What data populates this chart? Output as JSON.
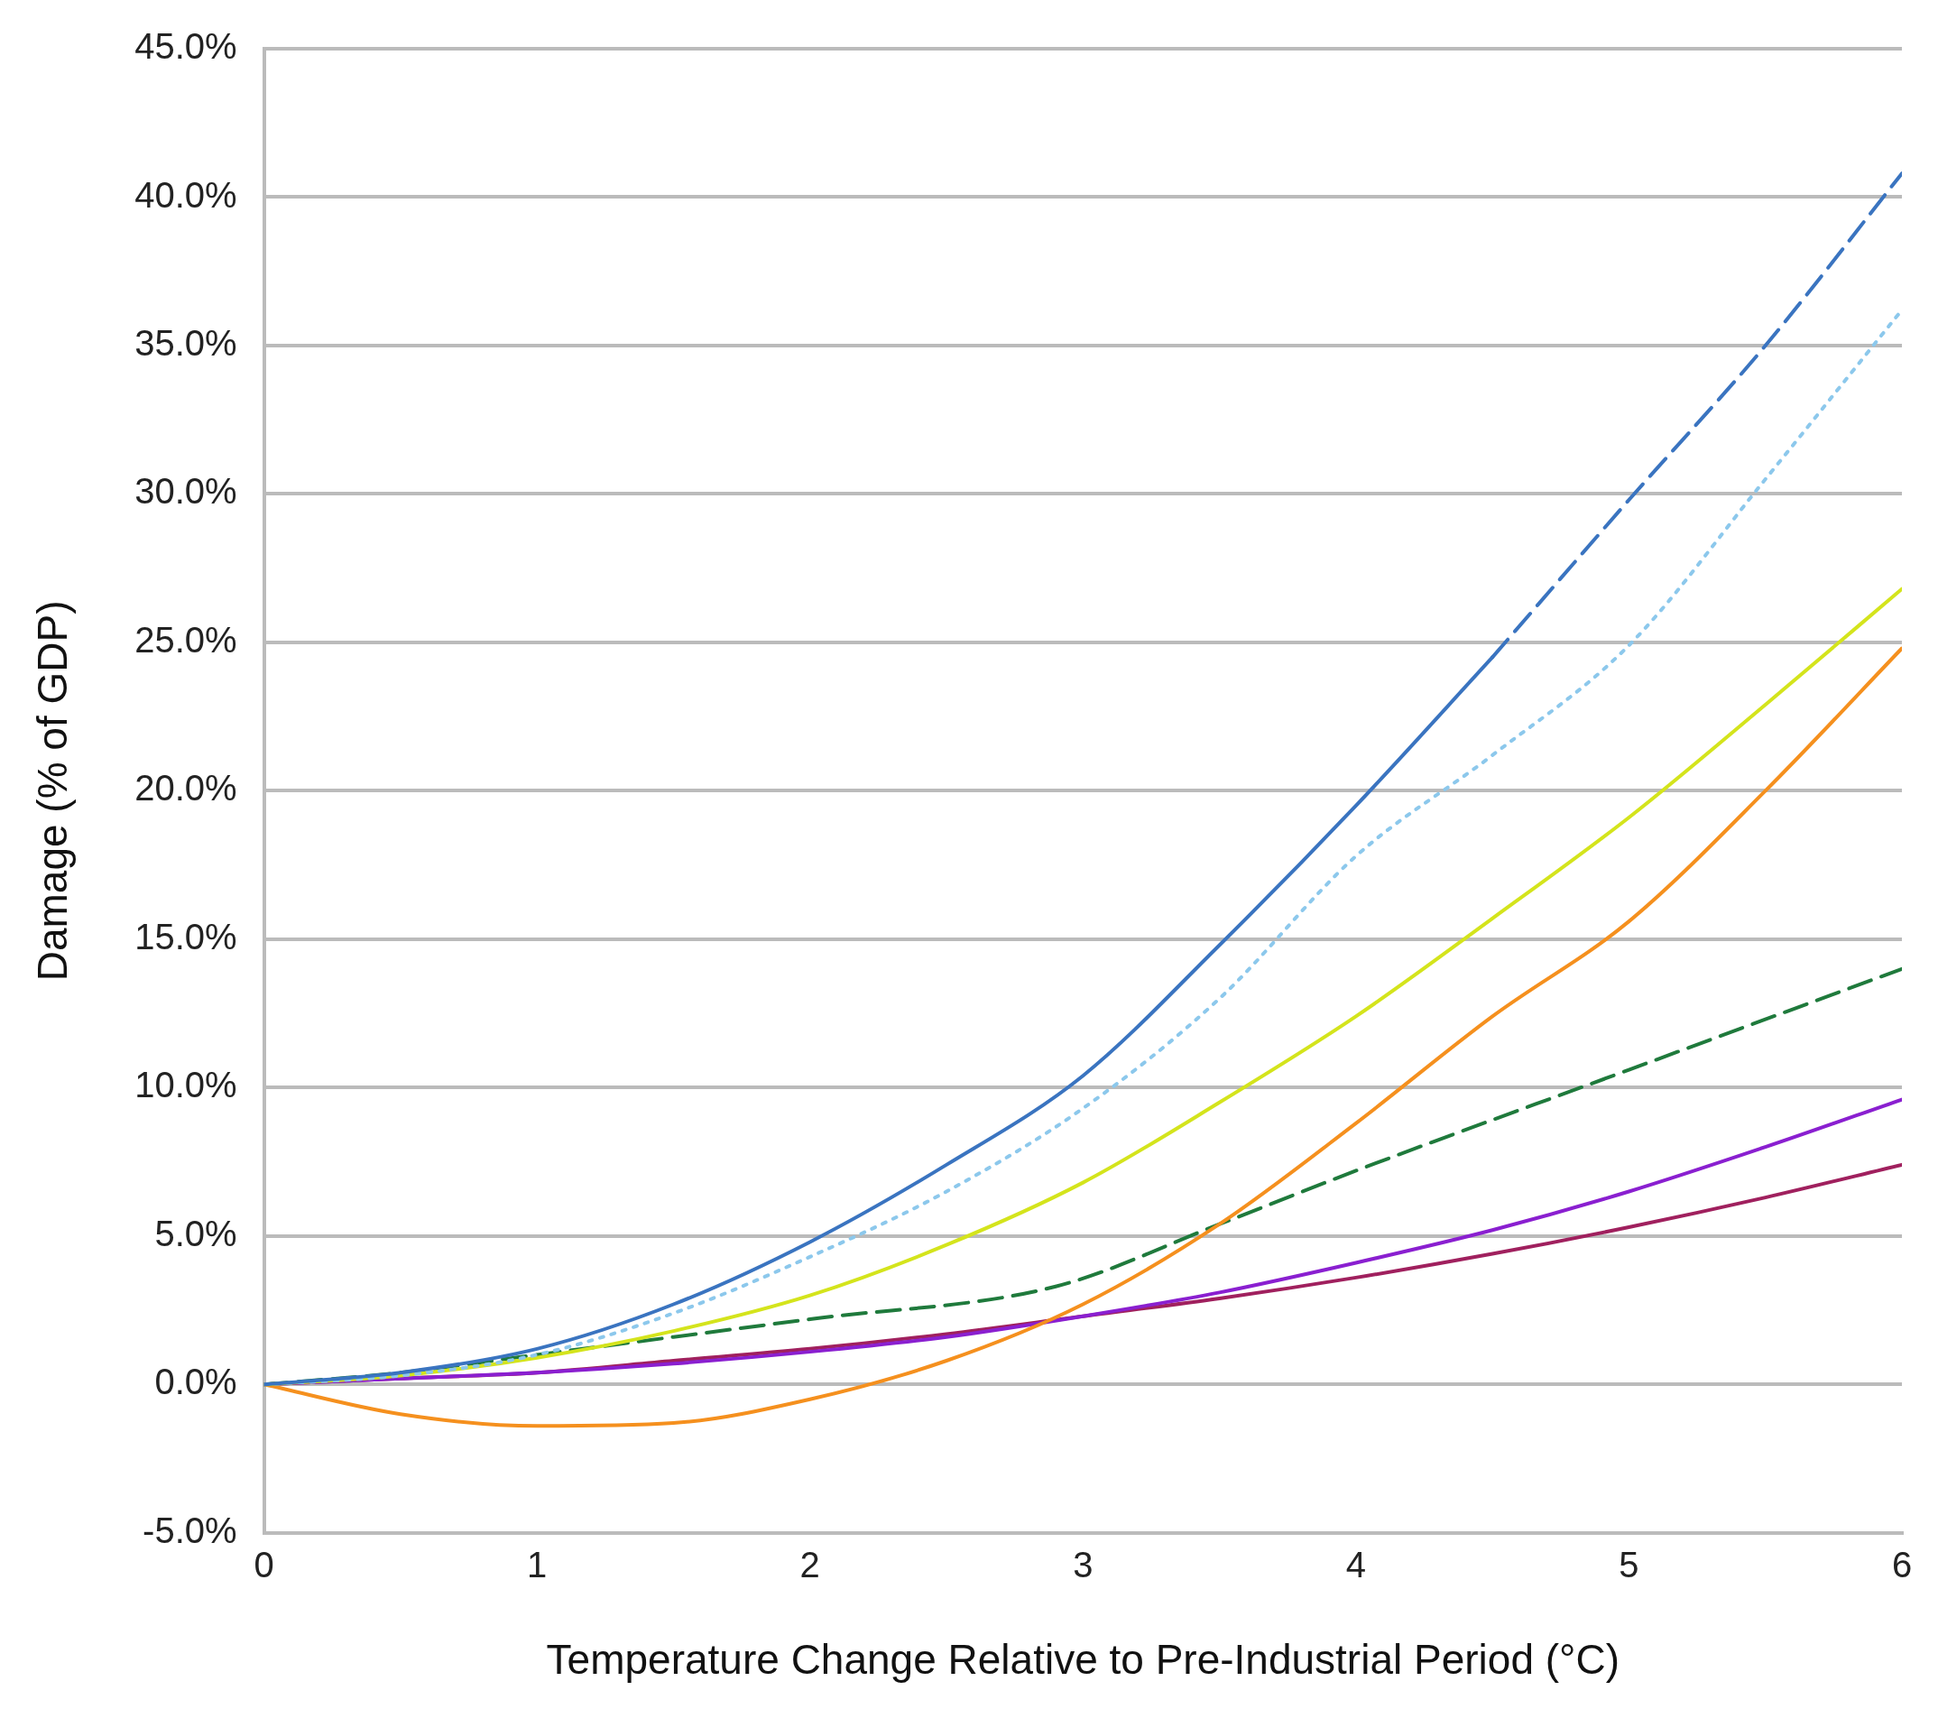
{
  "chart_data": {
    "type": "line",
    "xlabel": "Temperature Change Relative to Pre-Industrial Period (°C)",
    "ylabel": "Damage (% of GDP)",
    "xlim": [
      0,
      6
    ],
    "xticks": [
      0,
      1,
      2,
      3,
      4,
      5,
      6
    ],
    "ylim": [
      -5,
      45
    ],
    "yticks": [
      {
        "value": -5,
        "label": "-5.0%"
      },
      {
        "value": 0,
        "label": "0.0%"
      },
      {
        "value": 5,
        "label": "5.0%"
      },
      {
        "value": 10,
        "label": "10.0%"
      },
      {
        "value": 15,
        "label": "15.0%"
      },
      {
        "value": 20,
        "label": "20.0%"
      },
      {
        "value": 25,
        "label": "25.0%"
      },
      {
        "value": 30,
        "label": "30.0%"
      },
      {
        "value": 35,
        "label": "35.0%"
      },
      {
        "value": 40,
        "label": "40.0%"
      },
      {
        "value": 45,
        "label": "45.0%"
      }
    ],
    "grid": "y",
    "legend": false,
    "marker": "none",
    "series": [
      {
        "color": "#3a74c0",
        "line_style": "solid",
        "x": [
          0,
          0.5,
          1,
          1.5,
          2,
          2.5,
          3,
          3.5,
          4,
          4.5
        ],
        "values": [
          0,
          0.4,
          1.2,
          2.7,
          4.8,
          7.4,
          10.4,
          14.8,
          19.5,
          24.5
        ]
      },
      {
        "color": "#3a74c0",
        "line_style": "dashed",
        "x": [
          4.5,
          5,
          5.5,
          6
        ],
        "values": [
          24.5,
          29.8,
          35,
          40.8
        ]
      },
      {
        "color": "#8cc8ec",
        "line_style": "dotted",
        "x": [
          0,
          0.5,
          1,
          1.5,
          2,
          2.5,
          3,
          3.5,
          4,
          4.5,
          5,
          5.5,
          6
        ],
        "values": [
          0,
          0.3,
          1.0,
          2.4,
          4.3,
          6.5,
          9.3,
          13,
          17.8,
          21.2,
          24.9,
          30.5,
          36.2
        ]
      },
      {
        "color": "#d4e41c",
        "line_style": "solid",
        "x": [
          0,
          0.5,
          1,
          1.5,
          2,
          2.5,
          3,
          3.5,
          4,
          4.5,
          5,
          5.5,
          6
        ],
        "values": [
          0,
          0.3,
          0.9,
          1.8,
          3.0,
          4.7,
          6.8,
          9.5,
          12.4,
          15.7,
          19.1,
          22.9,
          26.8
        ]
      },
      {
        "color": "#f5901e",
        "line_style": "solid",
        "x": [
          0,
          0.5,
          1,
          1.5,
          2,
          2.5,
          3,
          3.5,
          4,
          4.5,
          5,
          5.5,
          6
        ],
        "values": [
          0,
          -1.0,
          -1.4,
          -1.3,
          -0.5,
          0.8,
          2.7,
          5.4,
          8.8,
          12.4,
          15.6,
          20,
          24.8
        ]
      },
      {
        "color": "#1f7a3c",
        "line_style": "dashed",
        "x": [
          0,
          0.5,
          1,
          1.5,
          2,
          2.9,
          3.5,
          4,
          5,
          6
        ],
        "values": [
          0,
          0.4,
          1.0,
          1.6,
          2.2,
          3.3,
          5.4,
          7.2,
          10.6,
          14.0
        ]
      },
      {
        "color": "#8a1fd0",
        "line_style": "solid",
        "x": [
          0,
          0.5,
          1,
          1.5,
          2,
          2.5,
          3,
          3.5,
          4,
          4.5,
          5,
          5.5,
          6
        ],
        "values": [
          0,
          0.2,
          0.4,
          0.7,
          1.1,
          1.6,
          2.3,
          3.1,
          4.1,
          5.2,
          6.5,
          8.0,
          9.6
        ]
      },
      {
        "color": "#a0205e",
        "line_style": "solid",
        "x": [
          0,
          0.5,
          1,
          1.5,
          2,
          2.5,
          3,
          3.5,
          4,
          4.5,
          5,
          5.5,
          6
        ],
        "values": [
          0,
          0.2,
          0.4,
          0.8,
          1.2,
          1.7,
          2.3,
          2.9,
          3.6,
          4.4,
          5.3,
          6.3,
          7.4
        ]
      }
    ]
  }
}
